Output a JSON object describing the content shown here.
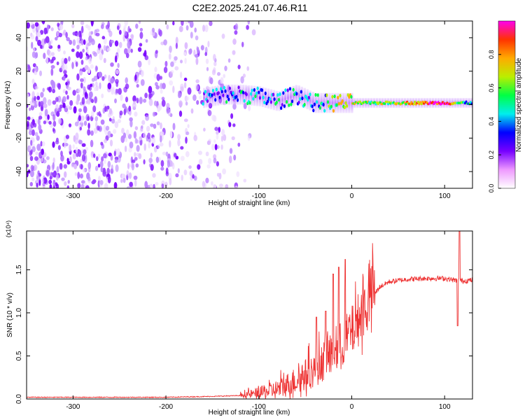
{
  "title": "C2E2.2025.241.07.46.R11",
  "colors": {
    "snr_line": "#ee3333",
    "axis": "#000000",
    "colorbar_stops": [
      "#ffffff",
      "#ee99ff",
      "#7700ff",
      "#0000ff",
      "#00eeee",
      "#00ff44",
      "#bbee00",
      "#ffaa00",
      "#ff3300",
      "#ff00ee"
    ]
  },
  "chart_data": [
    {
      "type": "heatmap",
      "name": "spectrogram",
      "xlabel": "Height of straight line (km)",
      "ylabel": "Frequency (Hz)",
      "xlim": [
        -350,
        130
      ],
      "ylim": [
        -50,
        50
      ],
      "xticks": [
        -300,
        -200,
        -100,
        0,
        100
      ],
      "xtick_labels": [
        "-300",
        "-200",
        "-100",
        "0",
        "100"
      ],
      "yticks": [
        -40,
        -20,
        0,
        20,
        40
      ],
      "ytick_labels": [
        "-40",
        "-20",
        "0",
        "20",
        "40"
      ],
      "noise_region_x": [
        -350,
        -105
      ],
      "signal_band": [
        {
          "x": -160,
          "f": 4,
          "amp": 0.3
        },
        {
          "x": -140,
          "f": 6,
          "amp": 0.35
        },
        {
          "x": -120,
          "f": 6,
          "amp": 0.38
        },
        {
          "x": -100,
          "f": 5,
          "amp": 0.4
        },
        {
          "x": -80,
          "f": 2,
          "amp": 0.42
        },
        {
          "x": -60,
          "f": 6,
          "amp": 0.4
        },
        {
          "x": -40,
          "f": 1,
          "amp": 0.45
        },
        {
          "x": -20,
          "f": 1,
          "amp": 0.6
        },
        {
          "x": 0,
          "f": 1,
          "amp": 0.7
        },
        {
          "x": 20,
          "f": 1,
          "amp": 0.6
        },
        {
          "x": 50,
          "f": 1,
          "amp": 0.65
        },
        {
          "x": 80,
          "f": 1,
          "amp": 0.85
        },
        {
          "x": 100,
          "f": 1,
          "amp": 0.95
        },
        {
          "x": 115,
          "f": 1,
          "amp": 0.5
        },
        {
          "x": 130,
          "f": 1,
          "amp": 0.5
        }
      ],
      "colorbar": {
        "label": "Normalized spectral amplitude",
        "range": [
          0,
          1
        ],
        "ticks": [
          0.0,
          0.2,
          0.4,
          0.6,
          0.8
        ],
        "tick_labels": [
          "0.0",
          "0.2",
          "0.4",
          "0.6",
          "0.8"
        ]
      }
    },
    {
      "type": "line",
      "name": "snr",
      "xlabel": "Height of straight line (km)",
      "ylabel": "SNR (10 * v/v)",
      "scale_label": "(x10⁴)",
      "xlim": [
        -350,
        130
      ],
      "ylim": [
        0,
        1.95
      ],
      "xticks": [
        -300,
        -200,
        -100,
        0,
        100
      ],
      "xtick_labels": [
        "-300",
        "-200",
        "-100",
        "0",
        "100"
      ],
      "yticks": [
        0.0,
        0.5,
        1.0,
        1.5
      ],
      "ytick_labels": [
        "0.0",
        "0.5",
        "1.0",
        "1.5"
      ],
      "envelope": {
        "x": [
          -350,
          -200,
          -150,
          -120,
          -100,
          -80,
          -60,
          -40,
          -30,
          -20,
          -10,
          0,
          10,
          20,
          30,
          40,
          60,
          80,
          100,
          110,
          120,
          130
        ],
        "y": [
          0.02,
          0.02,
          0.03,
          0.04,
          0.06,
          0.1,
          0.2,
          0.32,
          0.42,
          0.52,
          0.62,
          0.75,
          0.95,
          1.15,
          1.3,
          1.36,
          1.39,
          1.4,
          1.4,
          1.38,
          1.37,
          1.38
        ]
      },
      "peaks": [
        {
          "x": -38,
          "y": 0.95
        },
        {
          "x": -28,
          "y": 1.02
        },
        {
          "x": -20,
          "y": 1.45
        },
        {
          "x": -14,
          "y": 1.53
        },
        {
          "x": -7,
          "y": 1.62
        },
        {
          "x": 114,
          "y": 0.85
        },
        {
          "x": 116,
          "y": 1.95
        }
      ]
    }
  ]
}
